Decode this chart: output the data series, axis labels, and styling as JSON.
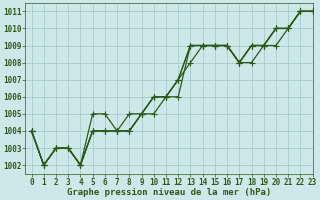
{
  "title": "Graphe pression niveau de la mer (hPa)",
  "bg_color": "#cce8e8",
  "grid_color": "#aacccc",
  "line_color": "#2d5a1b",
  "xlim": [
    -0.5,
    23
  ],
  "ylim": [
    1001.5,
    1011.5
  ],
  "yticks": [
    1002,
    1003,
    1004,
    1005,
    1006,
    1007,
    1008,
    1009,
    1010,
    1011
  ],
  "xticks": [
    0,
    1,
    2,
    3,
    4,
    5,
    6,
    7,
    8,
    9,
    10,
    11,
    12,
    13,
    14,
    15,
    16,
    17,
    18,
    19,
    20,
    21,
    22,
    23
  ],
  "series": [
    [
      1004,
      1002,
      1003,
      1003,
      1002,
      1004,
      1004,
      1004,
      1004,
      1005,
      1006,
      1006,
      1007,
      1009,
      1009,
      1009,
      1009,
      1008,
      1009,
      1009,
      1010,
      1010,
      1011,
      1011
    ],
    [
      1004,
      1002,
      1003,
      1003,
      1002,
      1004,
      1004,
      1004,
      1004,
      1005,
      1005,
      1006,
      1006,
      1009,
      1009,
      1009,
      1009,
      1008,
      1008,
      1009,
      1010,
      1010,
      1011,
      1011
    ],
    [
      1004,
      1002,
      1003,
      1003,
      1002,
      1005,
      1005,
      1004,
      1005,
      1005,
      1006,
      1006,
      1007,
      1009,
      1009,
      1009,
      1009,
      1008,
      1009,
      1009,
      1009,
      1010,
      1011,
      1011
    ],
    [
      1004,
      1002,
      1003,
      1003,
      1002,
      1004,
      1004,
      1004,
      1004,
      1005,
      1006,
      1006,
      1007,
      1008,
      1009,
      1009,
      1009,
      1008,
      1009,
      1009,
      1010,
      1010,
      1011,
      1011
    ]
  ],
  "marker": "+",
  "markersize": 4,
  "linewidth": 0.9,
  "tick_fontsize": 5.5,
  "title_fontsize": 6.5
}
